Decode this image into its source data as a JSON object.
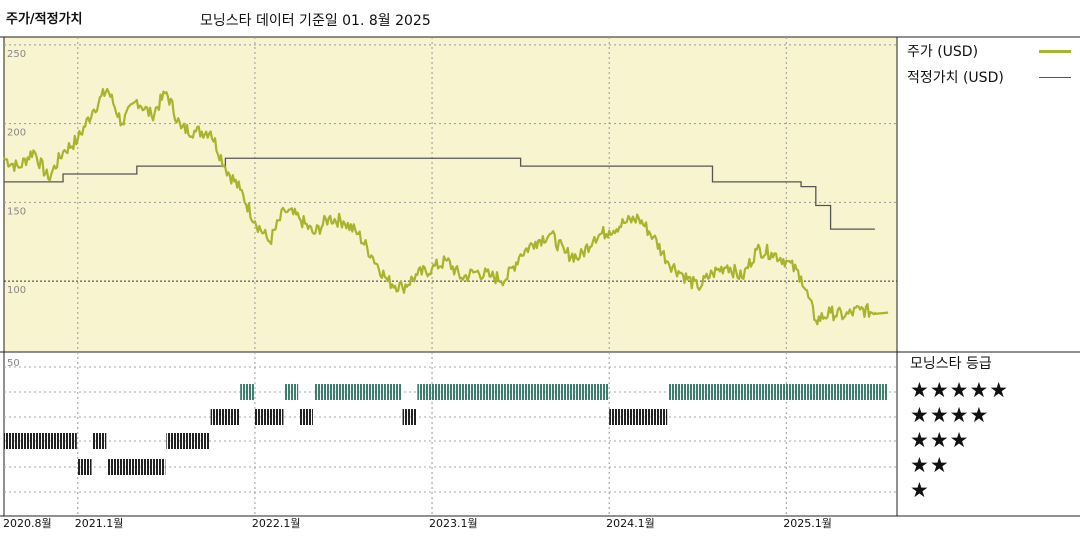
{
  "header": {
    "left_title": "주가/적정가치",
    "source_text": "모닝스타 데이터 기준일 01. 8월 2025"
  },
  "legend": {
    "price_label": "주가 (USD)",
    "fair_label": "적정가치 (USD)"
  },
  "rating_panel": {
    "title": "모닝스타 등급",
    "stars": [
      "★★★★★",
      "★★★★",
      "★★★",
      "★★",
      "★"
    ]
  },
  "colors": {
    "price": "#a9b42e",
    "fair": "#555555",
    "panel_bg": "#f8f4cf",
    "five_star": "#3a7f6a",
    "other_star": "#222222"
  },
  "chart_data": {
    "type": "line",
    "x_tick_labels": [
      "2020.8월",
      "2021.1월",
      "2022.1월",
      "2023.1월",
      "2024.1월",
      "2025.1월"
    ],
    "x_ticks": [
      "2020-08",
      "2021-01",
      "2022-01",
      "2023-01",
      "2024-01",
      "2025-01"
    ],
    "y_ticks": [
      100,
      150,
      200,
      250
    ],
    "y_tick_labels": [
      "100",
      "150",
      "200",
      "250"
    ],
    "ylim": [
      55,
      255
    ],
    "x_start": "2020-08",
    "x_end": "2025-07",
    "series": [
      {
        "name": "주가 (USD)",
        "points": [
          [
            "2020-08",
            178
          ],
          [
            "2020-09",
            172
          ],
          [
            "2020-10",
            183
          ],
          [
            "2020-11",
            165
          ],
          [
            "2020-12",
            182
          ],
          [
            "2021-01",
            190
          ],
          [
            "2021-02",
            208
          ],
          [
            "2021-03",
            222
          ],
          [
            "2021-04",
            200
          ],
          [
            "2021-05",
            215
          ],
          [
            "2021-06",
            205
          ],
          [
            "2021-07",
            220
          ],
          [
            "2021-08",
            197
          ],
          [
            "2021-09",
            195
          ],
          [
            "2021-10",
            195
          ],
          [
            "2021-11",
            172
          ],
          [
            "2021-12",
            158
          ],
          [
            "2022-01",
            138
          ],
          [
            "2022-02",
            125
          ],
          [
            "2022-03",
            145
          ],
          [
            "2022-04",
            140
          ],
          [
            "2022-05",
            130
          ],
          [
            "2022-06",
            140
          ],
          [
            "2022-07",
            138
          ],
          [
            "2022-08",
            130
          ],
          [
            "2022-09",
            115
          ],
          [
            "2022-10",
            100
          ],
          [
            "2022-11",
            96
          ],
          [
            "2022-12",
            104
          ],
          [
            "2023-01",
            108
          ],
          [
            "2023-02",
            113
          ],
          [
            "2023-03",
            102
          ],
          [
            "2023-04",
            106
          ],
          [
            "2023-05",
            103
          ],
          [
            "2023-06",
            101
          ],
          [
            "2023-07",
            117
          ],
          [
            "2023-08",
            125
          ],
          [
            "2023-09",
            130
          ],
          [
            "2023-10",
            118
          ],
          [
            "2023-11",
            115
          ],
          [
            "2023-12",
            128
          ],
          [
            "2024-01",
            132
          ],
          [
            "2024-02",
            137
          ],
          [
            "2024-03",
            140
          ],
          [
            "2024-04",
            128
          ],
          [
            "2024-05",
            112
          ],
          [
            "2024-06",
            104
          ],
          [
            "2024-07",
            96
          ],
          [
            "2024-08",
            105
          ],
          [
            "2024-09",
            110
          ],
          [
            "2024-10",
            102
          ],
          [
            "2024-11",
            120
          ],
          [
            "2024-12",
            118
          ],
          [
            "2025-01",
            113
          ],
          [
            "2025-02",
            103
          ],
          [
            "2025-03",
            75
          ],
          [
            "2025-04",
            80
          ],
          [
            "2025-05",
            78
          ],
          [
            "2025-06",
            82
          ],
          [
            "2025-07",
            80
          ]
        ]
      },
      {
        "name": "적정가치 (USD)",
        "step": true,
        "points": [
          [
            "2020-08",
            163
          ],
          [
            "2020-11",
            163
          ],
          [
            "2020-12",
            168
          ],
          [
            "2021-04",
            168
          ],
          [
            "2021-05",
            173
          ],
          [
            "2021-10",
            173
          ],
          [
            "2021-11",
            178
          ],
          [
            "2023-06",
            178
          ],
          [
            "2023-07",
            173
          ],
          [
            "2024-07",
            173
          ],
          [
            "2024-08",
            163
          ],
          [
            "2025-01",
            163
          ],
          [
            "2025-02",
            160
          ],
          [
            "2025-03",
            148
          ],
          [
            "2025-04",
            133
          ],
          [
            "2025-07",
            133
          ]
        ]
      }
    ],
    "star_ratings": [
      {
        "from": "2020-08",
        "to": "2021-01",
        "stars": 3
      },
      {
        "from": "2021-01",
        "to": "2021-02",
        "stars": 2
      },
      {
        "from": "2021-02",
        "to": "2021-03",
        "stars": 3
      },
      {
        "from": "2021-03",
        "to": "2021-07",
        "stars": 2
      },
      {
        "from": "2021-07",
        "to": "2021-10",
        "stars": 3
      },
      {
        "from": "2021-10",
        "to": "2021-12",
        "stars": 4
      },
      {
        "from": "2021-12",
        "to": "2022-01",
        "stars": 5
      },
      {
        "from": "2022-01",
        "to": "2022-03",
        "stars": 4
      },
      {
        "from": "2022-03",
        "to": "2022-04",
        "stars": 5
      },
      {
        "from": "2022-04",
        "to": "2022-05",
        "stars": 4
      },
      {
        "from": "2022-05",
        "to": "2022-11",
        "stars": 5
      },
      {
        "from": "2022-11",
        "to": "2022-12",
        "stars": 4
      },
      {
        "from": "2022-12",
        "to": "2024-01",
        "stars": 5
      },
      {
        "from": "2024-01",
        "to": "2024-05",
        "stars": 4
      },
      {
        "from": "2024-05",
        "to": "2025-07",
        "stars": 5
      }
    ]
  }
}
